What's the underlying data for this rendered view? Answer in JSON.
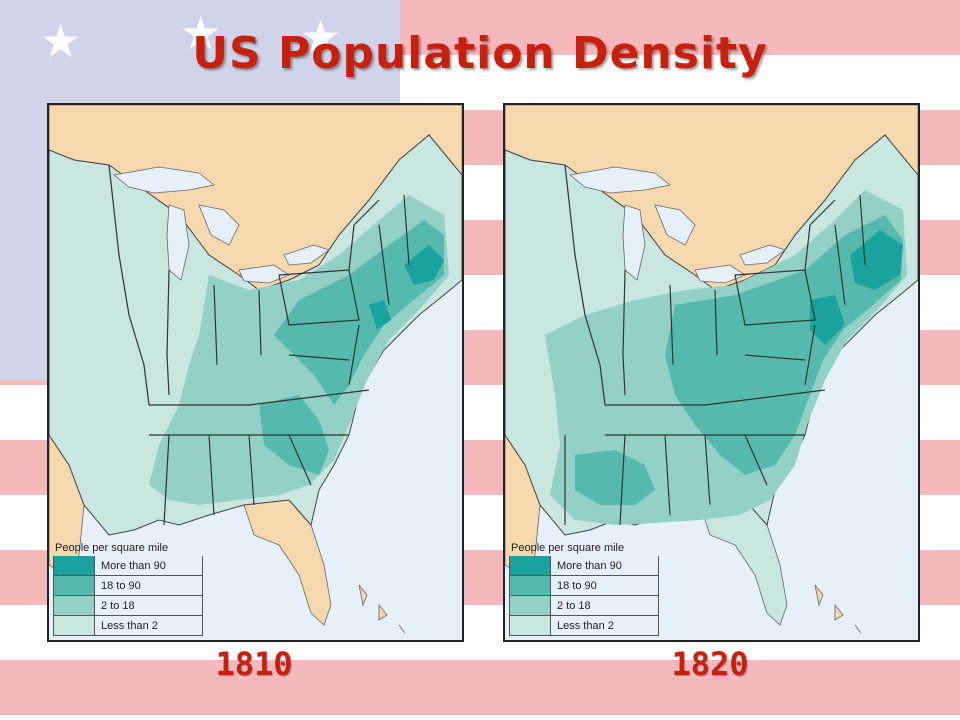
{
  "title": "US Population Density",
  "legend": {
    "title": "People per square mile",
    "items": [
      {
        "label": "More than 90",
        "color": "#1aa39e"
      },
      {
        "label": "18 to 90",
        "color": "#56b9ad"
      },
      {
        "label": "2 to 18",
        "color": "#93d0c6"
      },
      {
        "label": "Less than 2",
        "color": "#c9e6e0"
      }
    ]
  },
  "maps": [
    {
      "year": "1810"
    },
    {
      "year": "1820"
    }
  ],
  "colors": {
    "water": "#e6f0f8",
    "foreign_land": "#f6d8ae",
    "accent_title": "#c8200e",
    "flag_red": "#f5b8bd",
    "flag_blue": "#cfd4ea"
  }
}
